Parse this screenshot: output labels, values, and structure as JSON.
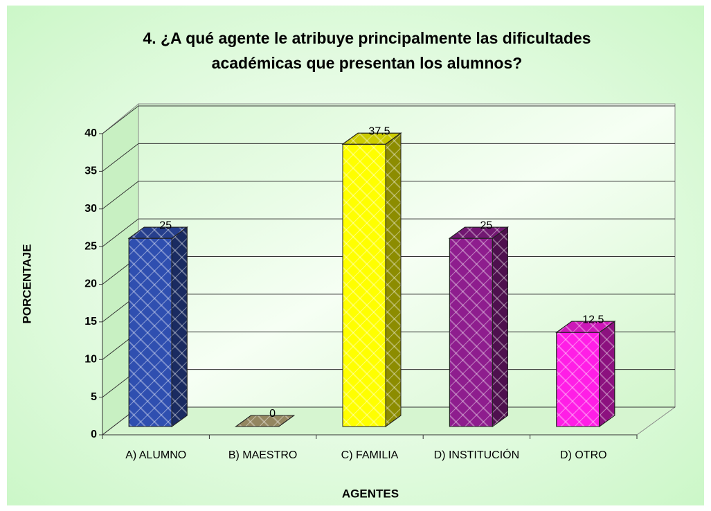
{
  "chart_data": {
    "type": "bar3d",
    "title": [
      "4. ¿A qué agente le atribuye principalmente las dificultades",
      "académicas que presentan los alumnos?"
    ],
    "y_label": "PORCENTAJE",
    "x_label": "AGENTES",
    "categories": [
      "A) ALUMNO",
      "B) MAESTRO",
      "C) FAMILIA",
      "D) INSTITUCIÓN",
      "D) OTRO"
    ],
    "values": [
      25,
      0,
      37.5,
      25,
      12.5
    ],
    "colors": [
      "#2f4fb0",
      "#b8a878",
      "#ffff00",
      "#8e1d8e",
      "#ff1ee6"
    ],
    "ylim": [
      0,
      40
    ],
    "yticks": [
      0,
      5,
      10,
      15,
      20,
      25,
      30,
      35,
      40
    ],
    "grid": true
  }
}
